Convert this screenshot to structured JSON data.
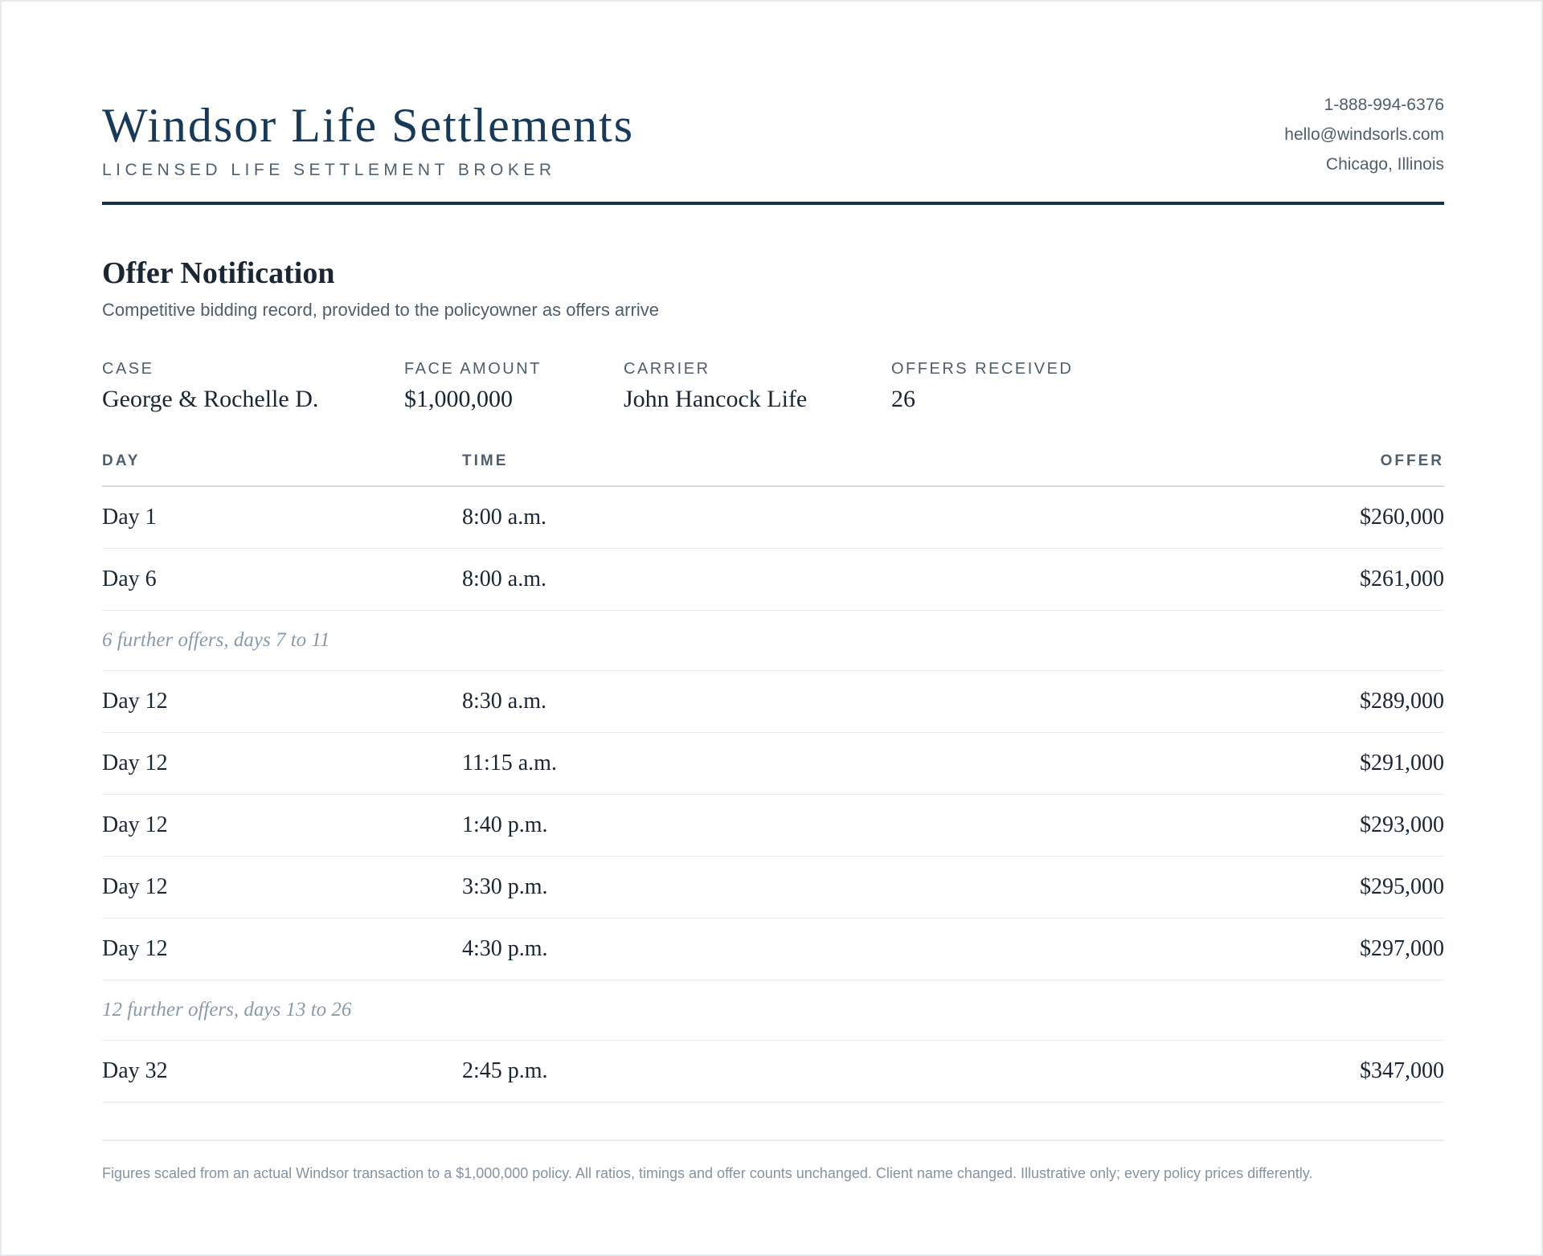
{
  "brand": {
    "name": "Windsor Life Settlements",
    "tagline": "LICENSED LIFE SETTLEMENT BROKER"
  },
  "contact": {
    "phone": "1-888-994-6376",
    "email": "hello@windsorls.com",
    "location": "Chicago, Illinois"
  },
  "document": {
    "title": "Offer Notification",
    "subtitle": "Competitive bidding record, provided to the policyowner as offers arrive"
  },
  "summary": {
    "case_label": "CASE",
    "case_value": "George & Rochelle D.",
    "face_label": "FACE AMOUNT",
    "face_value": "$1,000,000",
    "carrier_label": "CARRIER",
    "carrier_value": "John Hancock Life",
    "offers_label": "OFFERS RECEIVED",
    "offers_value": "26"
  },
  "table": {
    "headers": {
      "day": "DAY",
      "time": "TIME",
      "offer": "OFFER"
    },
    "rows": [
      {
        "day": "Day 1",
        "time": "8:00 a.m.",
        "offer": "$260,000"
      },
      {
        "day": "Day 6",
        "time": "8:00 a.m.",
        "offer": "$261,000"
      },
      {
        "note": "6 further offers, days 7 to 11"
      },
      {
        "day": "Day 12",
        "time": "8:30 a.m.",
        "offer": "$289,000"
      },
      {
        "day": "Day 12",
        "time": "11:15 a.m.",
        "offer": "$291,000"
      },
      {
        "day": "Day 12",
        "time": "1:40 p.m.",
        "offer": "$293,000"
      },
      {
        "day": "Day 12",
        "time": "3:30 p.m.",
        "offer": "$295,000"
      },
      {
        "day": "Day 12",
        "time": "4:30 p.m.",
        "offer": "$297,000"
      },
      {
        "note": "12 further offers, days 13 to 26"
      },
      {
        "day": "Day 32",
        "time": "2:45 p.m.",
        "offer": "$347,000"
      }
    ]
  },
  "footnote": "Figures scaled from an actual Windsor transaction to a $1,000,000 policy. All ratios, timings and offer counts unchanged. Client name changed. Illustrative only; every policy prices differently."
}
